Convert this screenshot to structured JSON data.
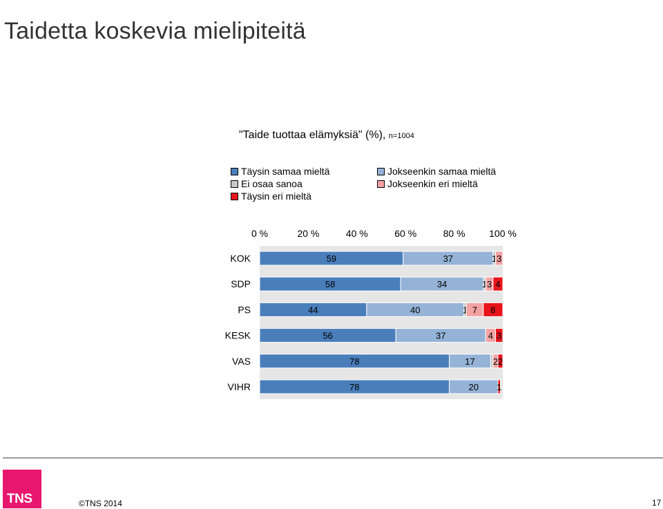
{
  "slide_title": "Taidetta koskevia mielipiteitä",
  "footer": {
    "logo_text": "TNS",
    "copyright": "©TNS 2014",
    "page_number": "17"
  },
  "chart_data": {
    "type": "bar",
    "orientation": "horizontal",
    "stacked": true,
    "title": "\"Taide tuottaa elämyksiä\" (%),",
    "sample_note": "n=1004",
    "x_ticks": [
      "0 %",
      "20 %",
      "40 %",
      "60 %",
      "80 %",
      "100 %"
    ],
    "xlim": [
      0,
      100
    ],
    "x_axis_position": "top",
    "categories": [
      "KOK",
      "SDP",
      "PS",
      "KESK",
      "VAS",
      "VIHR"
    ],
    "series": [
      {
        "name": "Täysin samaa mieltä",
        "color": "#4a7ebb",
        "values": [
          59,
          58,
          44,
          56,
          78,
          78
        ]
      },
      {
        "name": "Jokseenkin samaa mieltä",
        "color": "#95b3d7",
        "values": [
          37,
          34,
          40,
          37,
          17,
          20
        ]
      },
      {
        "name": "Ei osaa sanoa",
        "color": "#c8c8c8",
        "values": [
          1,
          1,
          1,
          0,
          1,
          0
        ]
      },
      {
        "name": "Jokseenkin eri mieltä",
        "color": "#f4a3a3",
        "values": [
          3,
          3,
          7,
          4,
          2,
          0
        ]
      },
      {
        "name": "Täysin eri mieltä",
        "color": "#e8141c",
        "values": [
          0,
          4,
          8,
          3,
          2,
          1
        ]
      }
    ],
    "data_labels": [
      [
        "59",
        "37",
        "1",
        "3",
        ""
      ],
      [
        "58",
        "34",
        "1",
        "3",
        "4"
      ],
      [
        "44",
        "40",
        "1",
        "7",
        "8"
      ],
      [
        "56",
        "37",
        "",
        "4",
        "3"
      ],
      [
        "78",
        "17",
        "",
        "2",
        "2"
      ],
      [
        "78",
        "20",
        "",
        "",
        "1"
      ]
    ],
    "legend_position": "top",
    "grid": false,
    "plot_background": "#e6e6e6"
  }
}
